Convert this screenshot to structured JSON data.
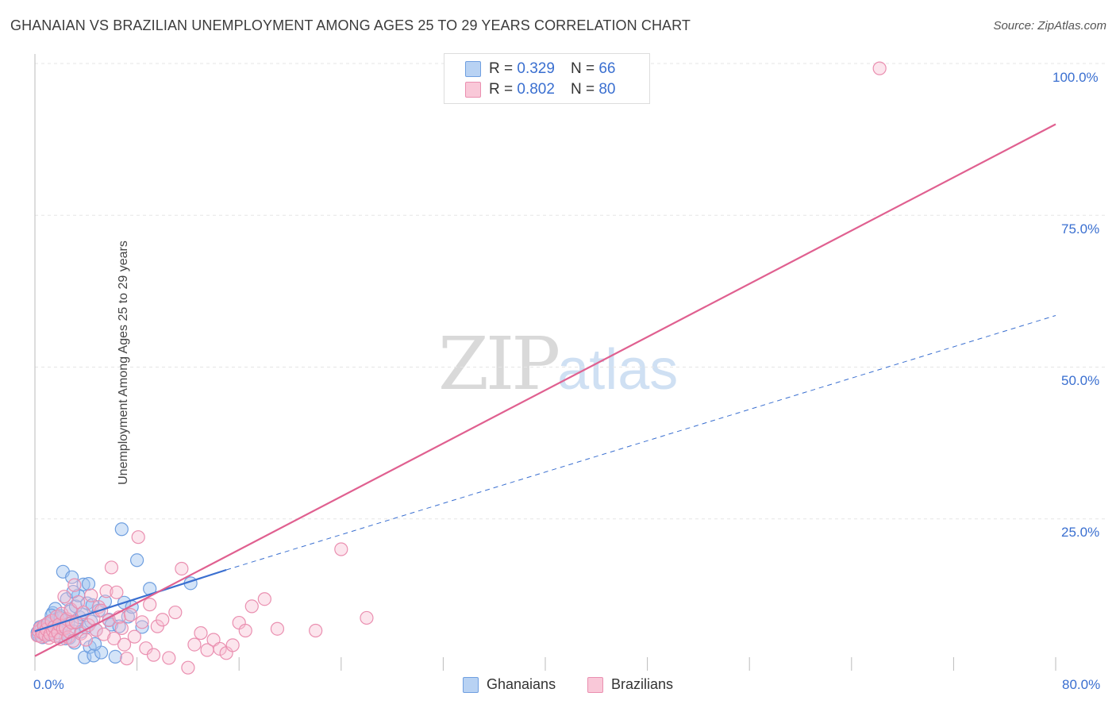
{
  "header": {
    "title": "GHANAIAN VS BRAZILIAN UNEMPLOYMENT AMONG AGES 25 TO 29 YEARS CORRELATION CHART",
    "source": "Source: ZipAtlas.com"
  },
  "watermark": {
    "zip": "ZIP",
    "atlas": "atlas"
  },
  "legend": {
    "rows": [
      {
        "r_label": "R =",
        "r_value": "0.329",
        "n_label": "N =",
        "n_value": "66"
      },
      {
        "r_label": "R =",
        "r_value": "0.802",
        "n_label": "N =",
        "n_value": "80"
      }
    ]
  },
  "bottom_legend": {
    "ghanaians": "Ghanaians",
    "brazilians": "Brazilians"
  },
  "axis": {
    "ylabel": "Unemployment Among Ages 25 to 29 years",
    "x_min_label": "0.0%",
    "x_max_label": "80.0%",
    "y_ticks": [
      "100.0%",
      "75.0%",
      "50.0%",
      "25.0%"
    ]
  },
  "colors": {
    "blue": "#3a6fd0",
    "blue_fill": "#a9c8f0",
    "pink": "#e06090",
    "pink_fill": "#f5b8cc"
  },
  "chart_data": {
    "type": "scatter",
    "title": "GHANAIAN VS BRAZILIAN UNEMPLOYMENT AMONG AGES 25 TO 29 YEARS CORRELATION CHART",
    "xlabel": "",
    "ylabel": "Unemployment Among Ages 25 to 29 years",
    "xlim": [
      0,
      80
    ],
    "ylim": [
      0,
      100
    ],
    "x_ticks": [
      0,
      80
    ],
    "y_ticks": [
      25,
      50,
      75,
      100
    ],
    "grid": true,
    "legend_placement": "top-center",
    "series": [
      {
        "name": "Ghanaians",
        "color": "#3a6fd0",
        "points": [
          [
            0.2,
            6.3
          ],
          [
            0.3,
            5.8
          ],
          [
            0.4,
            7.2
          ],
          [
            0.5,
            6.8
          ],
          [
            0.6,
            5.5
          ],
          [
            0.7,
            6.0
          ],
          [
            0.8,
            7.5
          ],
          [
            0.9,
            6.2
          ],
          [
            1.0,
            5.9
          ],
          [
            1.1,
            8.0
          ],
          [
            1.2,
            6.6
          ],
          [
            1.3,
            7.8
          ],
          [
            1.4,
            9.5
          ],
          [
            1.5,
            6.1
          ],
          [
            1.6,
            10.2
          ],
          [
            1.7,
            7.0
          ],
          [
            1.8,
            8.6
          ],
          [
            1.9,
            5.7
          ],
          [
            2.0,
            9.0
          ],
          [
            2.1,
            7.4
          ],
          [
            2.2,
            16.3
          ],
          [
            2.3,
            6.9
          ],
          [
            2.4,
            8.3
          ],
          [
            2.5,
            11.8
          ],
          [
            2.6,
            7.7
          ],
          [
            2.7,
            5.4
          ],
          [
            2.8,
            9.8
          ],
          [
            2.9,
            15.4
          ],
          [
            3.0,
            6.5
          ],
          [
            3.1,
            4.6
          ],
          [
            3.2,
            10.6
          ],
          [
            3.3,
            7.9
          ],
          [
            3.4,
            12.4
          ],
          [
            3.5,
            8.8
          ],
          [
            3.6,
            6.4
          ],
          [
            3.7,
            9.3
          ],
          [
            3.8,
            14.2
          ],
          [
            3.9,
            2.2
          ],
          [
            4.0,
            7.1
          ],
          [
            4.1,
            11.1
          ],
          [
            4.2,
            14.3
          ],
          [
            4.3,
            3.9
          ],
          [
            4.4,
            8.1
          ],
          [
            4.5,
            10.8
          ],
          [
            4.6,
            2.5
          ],
          [
            4.8,
            6.7
          ],
          [
            5.0,
            9.9
          ],
          [
            5.2,
            3.0
          ],
          [
            5.5,
            11.4
          ],
          [
            5.8,
            8.4
          ],
          [
            6.0,
            7.6
          ],
          [
            6.3,
            2.3
          ],
          [
            6.6,
            7.3
          ],
          [
            6.8,
            23.3
          ],
          [
            7.0,
            11.2
          ],
          [
            7.3,
            8.9
          ],
          [
            7.6,
            10.5
          ],
          [
            8.0,
            18.2
          ],
          [
            8.4,
            7.2
          ],
          [
            9.0,
            13.5
          ],
          [
            1.3,
            9.1
          ],
          [
            2.0,
            8.7
          ],
          [
            2.4,
            5.3
          ],
          [
            3.0,
            13.0
          ],
          [
            4.7,
            4.4
          ],
          [
            12.2,
            14.4
          ]
        ],
        "trend": {
          "x": [
            0,
            15
          ],
          "y": [
            6.5,
            16.6
          ],
          "dashed_extension_to": [
            80,
            58.5
          ]
        }
      },
      {
        "name": "Brazilians",
        "color": "#e06090",
        "points": [
          [
            0.2,
            5.8
          ],
          [
            0.3,
            6.5
          ],
          [
            0.4,
            7.0
          ],
          [
            0.5,
            5.6
          ],
          [
            0.6,
            6.2
          ],
          [
            0.7,
            7.4
          ],
          [
            0.8,
            5.9
          ],
          [
            0.9,
            6.8
          ],
          [
            1.0,
            7.8
          ],
          [
            1.1,
            5.4
          ],
          [
            1.2,
            6.0
          ],
          [
            1.3,
            8.2
          ],
          [
            1.4,
            6.6
          ],
          [
            1.5,
            7.2
          ],
          [
            1.6,
            5.7
          ],
          [
            1.7,
            8.9
          ],
          [
            1.8,
            6.3
          ],
          [
            1.9,
            7.6
          ],
          [
            2.0,
            5.2
          ],
          [
            2.1,
            9.4
          ],
          [
            2.2,
            6.9
          ],
          [
            2.3,
            12.2
          ],
          [
            2.4,
            7.1
          ],
          [
            2.5,
            8.5
          ],
          [
            2.6,
            5.5
          ],
          [
            2.7,
            6.4
          ],
          [
            2.8,
            10.1
          ],
          [
            2.9,
            7.9
          ],
          [
            3.0,
            4.9
          ],
          [
            3.2,
            8.0
          ],
          [
            3.4,
            11.3
          ],
          [
            3.6,
            6.1
          ],
          [
            3.8,
            9.6
          ],
          [
            4.0,
            5.1
          ],
          [
            4.2,
            7.5
          ],
          [
            4.4,
            12.4
          ],
          [
            4.6,
            8.6
          ],
          [
            4.8,
            6.7
          ],
          [
            5.0,
            10.5
          ],
          [
            5.2,
            9.9
          ],
          [
            5.4,
            6.0
          ],
          [
            5.6,
            13.1
          ],
          [
            5.8,
            8.3
          ],
          [
            6.0,
            17.0
          ],
          [
            6.2,
            5.3
          ],
          [
            6.4,
            12.9
          ],
          [
            6.6,
            8.8
          ],
          [
            6.8,
            7.0
          ],
          [
            7.0,
            4.3
          ],
          [
            7.2,
            2.0
          ],
          [
            7.5,
            9.2
          ],
          [
            7.8,
            5.6
          ],
          [
            8.1,
            22.0
          ],
          [
            8.4,
            8.0
          ],
          [
            8.7,
            3.7
          ],
          [
            9.0,
            10.9
          ],
          [
            9.3,
            2.6
          ],
          [
            9.6,
            7.3
          ],
          [
            10.0,
            8.4
          ],
          [
            10.5,
            2.1
          ],
          [
            11.0,
            9.6
          ],
          [
            11.5,
            16.8
          ],
          [
            12.0,
            0.5
          ],
          [
            12.5,
            4.3
          ],
          [
            13.0,
            6.2
          ],
          [
            13.5,
            3.4
          ],
          [
            14.0,
            5.1
          ],
          [
            14.5,
            3.6
          ],
          [
            15.0,
            2.9
          ],
          [
            15.5,
            4.2
          ],
          [
            16.0,
            7.9
          ],
          [
            16.5,
            6.6
          ],
          [
            17.0,
            10.6
          ],
          [
            18.0,
            11.8
          ],
          [
            19.0,
            6.9
          ],
          [
            22.0,
            6.6
          ],
          [
            24.0,
            20.0
          ],
          [
            26.0,
            8.7
          ],
          [
            3.1,
            14.1
          ],
          [
            66.2,
            99.2
          ]
        ],
        "trend": {
          "x": [
            0,
            80
          ],
          "y": [
            2.4,
            90.0
          ]
        }
      }
    ]
  }
}
